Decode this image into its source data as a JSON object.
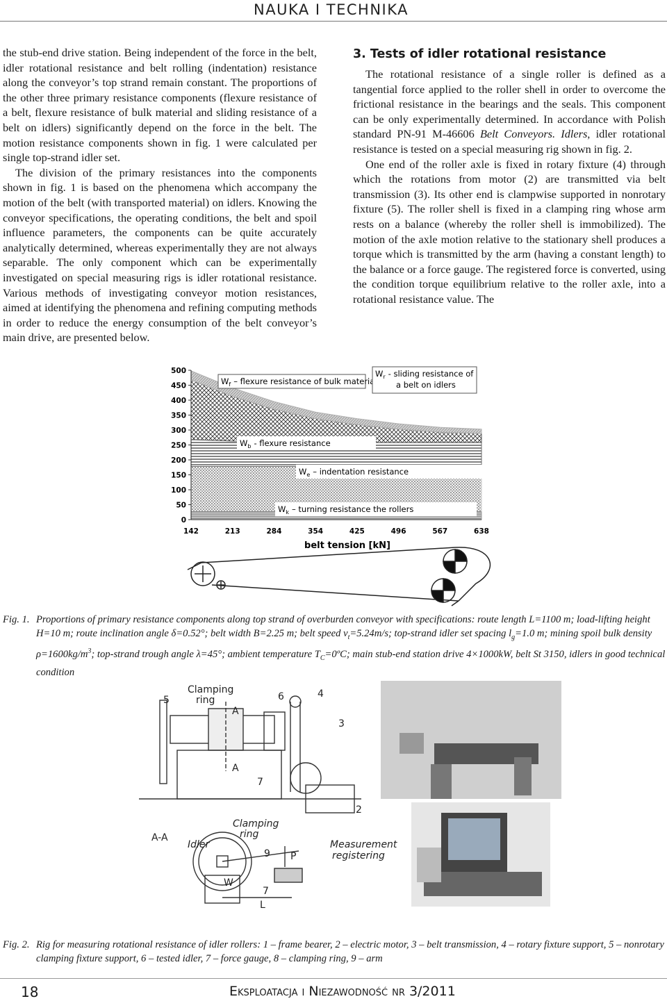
{
  "header": {
    "section": "NAUKA I TECHNIKA"
  },
  "left_column": {
    "paragraphs": [
      "the stub-end drive station. Being independent of the force in the belt, idler rotational resistance and belt rolling (indentation) resistance along the conveyor’s top strand remain constant. The proportions of the other three primary resistance components (flexure resistance of a belt, flexure resistance of bulk material and sliding resistance of a belt on idlers) significantly depend on the force in the belt. The motion resistance components shown in fig. 1 were calculated per single top-strand idler set.",
      "The division of the primary resistances into the components shown in fig. 1 is based on the phenomena which accompany the motion of the belt (with transported material) on idlers. Knowing the conveyor specifications, the operating conditions, the belt and spoil influence parameters, the components can be quite accurately analytically determined, whereas experimentally they are not always separable. The only component which can be experimentally investigated on special measuring rigs is idler rotational resistance. Various methods of investigating conveyor motion resistances, aimed at identifying the phenomena and refining computing methods in order to reduce the energy consumption of the belt conveyor’s main drive, are presented below."
    ]
  },
  "right_column": {
    "heading": "3. Tests of idler rotational resistance",
    "paragraph_1": [
      "The rotational resistance of a single roller is defined as a tangential force applied to the roller shell in order to overcome the frictional resistance in the bearings and the seals. This component can be only experimentally determined. In accordance with Polish standard PN-91 M-46606",
      "Belt Conveyors. Idlers",
      ", idler rotational resistance is tested on a special measuring rig shown in fig. 2."
    ],
    "paragraph_2": "One end of the roller axle is fixed in rotary fixture (4) through which the rotations from motor (2) are transmitted via belt transmission (3). Its other end is clampwise supported in nonrotary fixture (5). The roller shell is fixed in a clamping ring whose arm rests on a balance (whereby the roller shell is immobilized). The motion of the axle motion relative to the stationary shell produces a torque which is transmitted by the arm (having a constant length) to the balance or a force gauge. The registered force is converted, using the condition torque equilibrium relative to the roller axle, into a rotational resistance value. The"
  },
  "figure1": {
    "chart": {
      "type": "area",
      "x_label": "belt tension [kN]",
      "categories": [
        "142",
        "213",
        "284",
        "354",
        "425",
        "496",
        "567",
        "638"
      ],
      "ylim": [
        0,
        500
      ],
      "yticks": [
        0,
        50,
        100,
        150,
        200,
        250,
        300,
        350,
        400,
        450,
        500
      ],
      "series": [
        {
          "symbol": "W",
          "subscript": "k",
          "label": [
            "– turning resistance the rollers"
          ],
          "color": "#9a9a9a",
          "values": [
            28,
            28,
            28,
            28,
            28,
            28,
            28,
            28
          ]
        },
        {
          "symbol": "W",
          "subscript": "e",
          "label": [
            "– indentation resistance"
          ],
          "color": "#c8c8c8",
          "values": [
            150,
            150,
            150,
            150,
            150,
            150,
            150,
            150
          ]
        },
        {
          "symbol": "W",
          "subscript": "b",
          "label": [
            "- flexure resistance"
          ],
          "color": "#6e6e6e",
          "values": [
            90,
            85,
            82,
            80,
            80,
            80,
            80,
            80
          ]
        },
        {
          "symbol": "W",
          "subscript": "f",
          "label": [
            "– flexure resistance of bulk material"
          ],
          "color": "#555555",
          "values": [
            200,
            150,
            110,
            80,
            60,
            45,
            35,
            30
          ]
        },
        {
          "symbol": "W",
          "subscript": "r",
          "label": [
            "- sliding resistance of",
            "a belt on idlers"
          ],
          "color": "#b0b0b0",
          "values": [
            30,
            28,
            25,
            22,
            20,
            18,
            16,
            15
          ]
        }
      ]
    },
    "caption": {
      "label": "Fig. 1.",
      "segments": [
        "Proportions of primary resistance components along top strand of overburden conveyor with specifications: route length L=1100 m; load-lifting height H=10 m; route inclination angle δ=0.52°; belt width B=2.25 m; belt speed v",
        "t",
        "=5.24m/s; top-strand idler set spacing l",
        "g",
        "=1.0 m; mining spoil bulk density ρ=1600kg/m",
        "3",
        "; top-strand trough angle λ=45°; ambient temperature T",
        "C",
        "=0ºC; main stub-end station drive 4×1000kW, belt St 3150, idlers in good technical condition"
      ]
    }
  },
  "figure2": {
    "labels": [
      "Clamping",
      "ring",
      "5",
      "6",
      "4",
      "A",
      "3",
      "A",
      "7",
      "2",
      "Clamping",
      "ring",
      "A-A",
      "Idler",
      "9",
      "Measurement",
      "registering",
      "P",
      "W",
      "7",
      "L"
    ],
    "caption": {
      "label": "Fig. 2.",
      "text": "Rig for measuring rotational resistance of idler rollers: 1 – frame bearer, 2 – electric motor, 3 – belt transmission, 4 – rotary fixture support, 5 – nonrotary clamping fixture support, 6 – tested idler, 7 – force gauge, 8 – clamping ring, 9 – arm"
    }
  },
  "footer": {
    "page": "18",
    "journal": "Eksploatacja i Niezawodność nr 3/2011"
  }
}
